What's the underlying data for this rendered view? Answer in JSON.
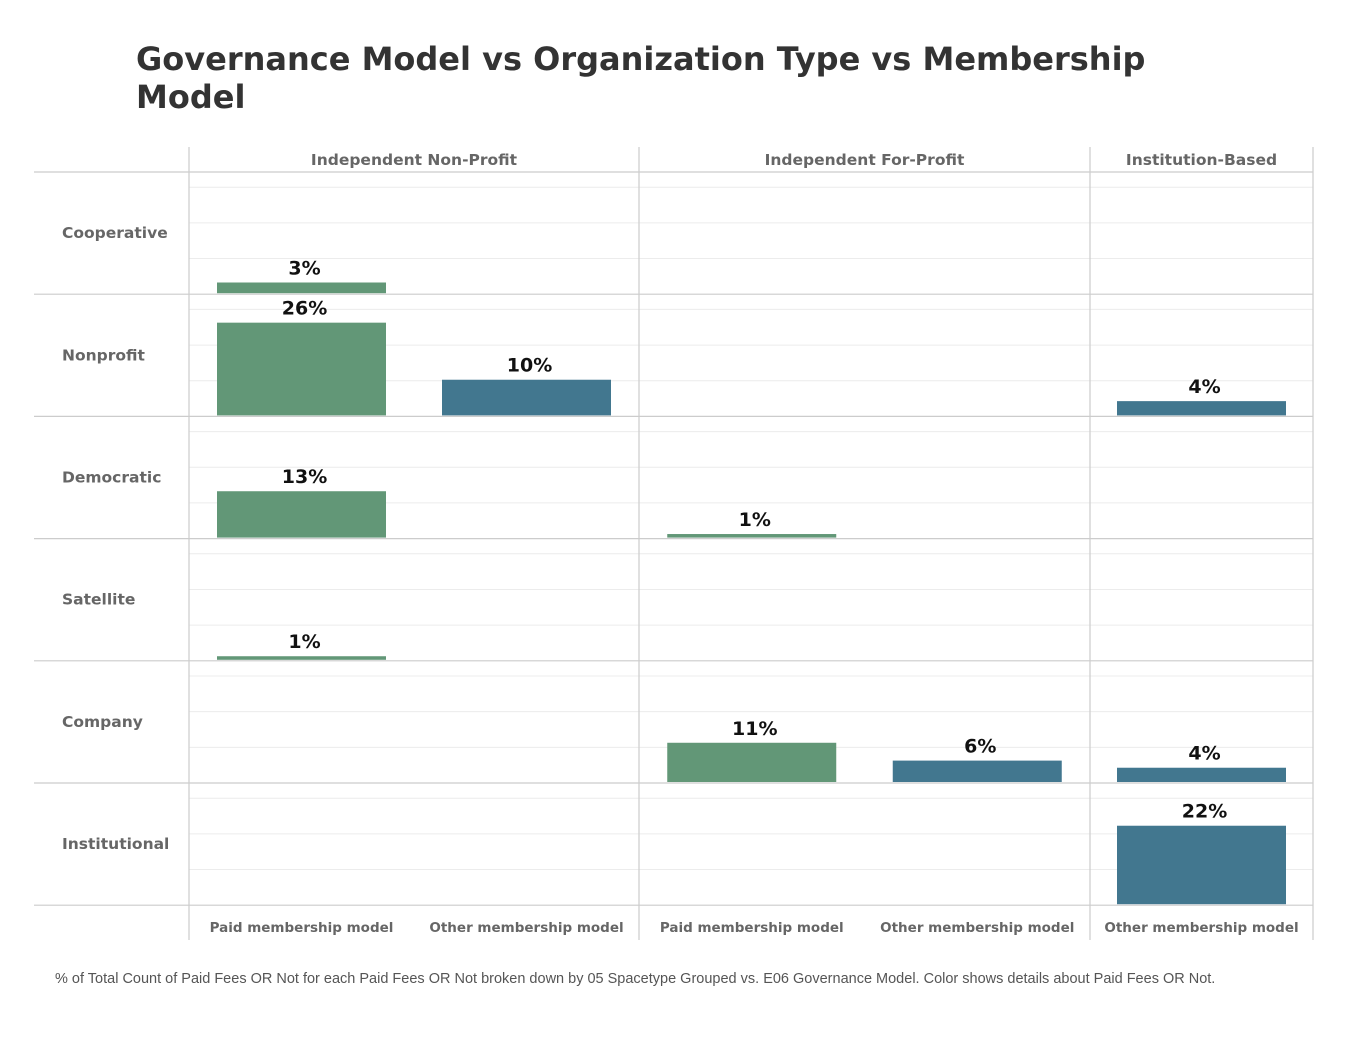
{
  "title": "Governance Model vs Organization Type vs Membership Model",
  "caption": "% of Total Count of Paid Fees OR Not for each Paid Fees OR Not broken down by 05 Spacetype Grouped vs. E06 Governance Model.  Color shows details about Paid Fees OR Not.",
  "colors": {
    "paid": "#629777",
    "other": "#42778F",
    "grid": "#cccccc",
    "minor_grid": "#ececec"
  },
  "chart_data": {
    "type": "bar",
    "title": "Governance Model vs Organization Type vs Membership Model",
    "column_groups": [
      {
        "name": "Independent Non-Profit",
        "categories": [
          "Paid membership model",
          "Other membership model"
        ]
      },
      {
        "name": "Independent For-Profit",
        "categories": [
          "Paid membership model",
          "Other membership model"
        ]
      },
      {
        "name": "Institution-Based",
        "categories": [
          "Other membership model"
        ]
      }
    ],
    "rows": [
      "Cooperative",
      "Nonprofit",
      "Democratic",
      "Satellite",
      "Company",
      "Institutional"
    ],
    "series": [
      {
        "name": "Paid membership model",
        "color": "#629777"
      },
      {
        "name": "Other membership model",
        "color": "#42778F"
      }
    ],
    "ylim": [
      0,
      30
    ],
    "unit": "%",
    "values": [
      {
        "row": "Cooperative",
        "group": "Independent Non-Profit",
        "category": "Paid membership model",
        "value": 3,
        "label": "3%"
      },
      {
        "row": "Nonprofit",
        "group": "Independent Non-Profit",
        "category": "Paid membership model",
        "value": 26,
        "label": "26%"
      },
      {
        "row": "Nonprofit",
        "group": "Independent Non-Profit",
        "category": "Other membership model",
        "value": 10,
        "label": "10%"
      },
      {
        "row": "Nonprofit",
        "group": "Institution-Based",
        "category": "Other membership model",
        "value": 4,
        "label": "4%"
      },
      {
        "row": "Democratic",
        "group": "Independent Non-Profit",
        "category": "Paid membership model",
        "value": 13,
        "label": "13%"
      },
      {
        "row": "Democratic",
        "group": "Independent For-Profit",
        "category": "Paid membership model",
        "value": 1,
        "label": "1%"
      },
      {
        "row": "Satellite",
        "group": "Independent Non-Profit",
        "category": "Paid membership model",
        "value": 1,
        "label": "1%"
      },
      {
        "row": "Company",
        "group": "Independent For-Profit",
        "category": "Paid membership model",
        "value": 11,
        "label": "11%"
      },
      {
        "row": "Company",
        "group": "Independent For-Profit",
        "category": "Other membership model",
        "value": 6,
        "label": "6%"
      },
      {
        "row": "Company",
        "group": "Institution-Based",
        "category": "Other membership model",
        "value": 4,
        "label": "4%"
      },
      {
        "row": "Institutional",
        "group": "Institution-Based",
        "category": "Other membership model",
        "value": 22,
        "label": "22%"
      }
    ]
  }
}
